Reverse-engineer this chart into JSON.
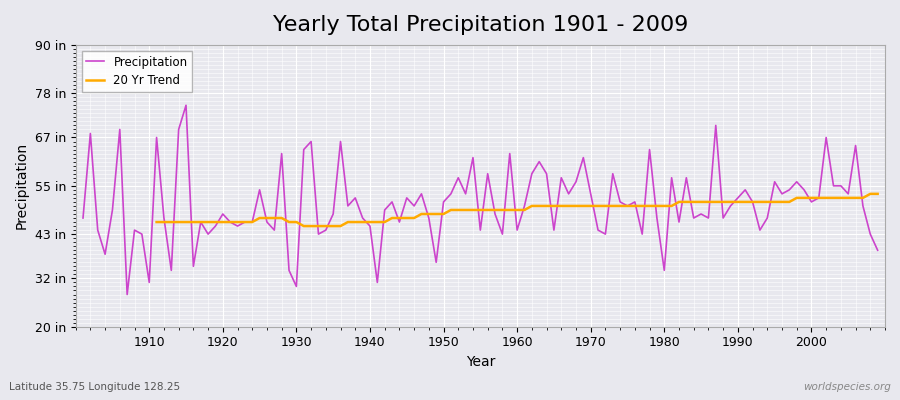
{
  "title": "Yearly Total Precipitation 1901 - 2009",
  "xlabel": "Year",
  "ylabel": "Precipitation",
  "subtitle": "Latitude 35.75 Longitude 128.25",
  "watermark": "worldspecies.org",
  "years": [
    1901,
    1902,
    1903,
    1904,
    1905,
    1906,
    1907,
    1908,
    1909,
    1910,
    1911,
    1912,
    1913,
    1914,
    1915,
    1916,
    1917,
    1918,
    1919,
    1920,
    1921,
    1922,
    1923,
    1924,
    1925,
    1926,
    1927,
    1928,
    1929,
    1930,
    1931,
    1932,
    1933,
    1934,
    1935,
    1936,
    1937,
    1938,
    1939,
    1940,
    1941,
    1942,
    1943,
    1944,
    1945,
    1946,
    1947,
    1948,
    1949,
    1950,
    1951,
    1952,
    1953,
    1954,
    1955,
    1956,
    1957,
    1958,
    1959,
    1960,
    1961,
    1962,
    1963,
    1964,
    1965,
    1966,
    1967,
    1968,
    1969,
    1970,
    1971,
    1972,
    1973,
    1974,
    1975,
    1976,
    1977,
    1978,
    1979,
    1980,
    1981,
    1982,
    1983,
    1984,
    1985,
    1986,
    1987,
    1988,
    1989,
    1990,
    1991,
    1992,
    1993,
    1994,
    1995,
    1996,
    1997,
    1998,
    1999,
    2000,
    2001,
    2002,
    2003,
    2004,
    2005,
    2006,
    2007,
    2008,
    2009
  ],
  "precipitation": [
    47,
    68,
    44,
    38,
    49,
    69,
    28,
    44,
    43,
    31,
    67,
    47,
    34,
    69,
    75,
    35,
    46,
    43,
    45,
    48,
    46,
    45,
    46,
    46,
    54,
    46,
    44,
    63,
    34,
    30,
    64,
    66,
    43,
    44,
    48,
    66,
    50,
    52,
    47,
    45,
    31,
    49,
    51,
    46,
    52,
    50,
    53,
    47,
    36,
    51,
    53,
    57,
    53,
    62,
    44,
    58,
    48,
    43,
    63,
    44,
    50,
    58,
    61,
    58,
    44,
    57,
    53,
    56,
    62,
    53,
    44,
    43,
    58,
    51,
    50,
    51,
    43,
    64,
    47,
    34,
    57,
    46,
    57,
    47,
    48,
    47,
    70,
    47,
    50,
    52,
    54,
    51,
    44,
    47,
    56,
    53,
    54,
    56,
    54,
    51,
    52,
    67,
    55,
    55,
    53,
    65,
    50,
    43,
    39
  ],
  "trend": [
    null,
    null,
    null,
    null,
    null,
    null,
    null,
    null,
    null,
    null,
    46,
    46,
    46,
    46,
    46,
    46,
    46,
    46,
    46,
    46,
    46,
    46,
    46,
    46,
    47,
    47,
    47,
    47,
    46,
    46,
    45,
    45,
    45,
    45,
    45,
    45,
    46,
    46,
    46,
    46,
    46,
    46,
    47,
    47,
    47,
    47,
    48,
    48,
    48,
    48,
    49,
    49,
    49,
    49,
    49,
    49,
    49,
    49,
    49,
    49,
    49,
    50,
    50,
    50,
    50,
    50,
    50,
    50,
    50,
    50,
    50,
    50,
    50,
    50,
    50,
    50,
    50,
    50,
    50,
    50,
    50,
    51,
    51,
    51,
    51,
    51,
    51,
    51,
    51,
    51,
    51,
    51,
    51,
    51,
    51,
    51,
    51,
    52,
    52,
    52,
    52,
    52,
    52,
    52,
    52,
    52,
    52,
    53,
    53
  ],
  "ylim": [
    20,
    90
  ],
  "yticks": [
    20,
    32,
    43,
    55,
    67,
    78,
    90
  ],
  "ytick_labels": [
    "20 in",
    "32 in",
    "43 in",
    "55 in",
    "67 in",
    "78 in",
    "90 in"
  ],
  "xlim": [
    1900,
    2010
  ],
  "bg_color": "#e8e8ee",
  "plot_bg_color": "#e8e8ee",
  "line_color_precip": "#cc44cc",
  "line_color_trend": "#ffaa00",
  "grid_color": "#ffffff",
  "title_fontsize": 16,
  "axis_label_fontsize": 10,
  "tick_fontsize": 9
}
